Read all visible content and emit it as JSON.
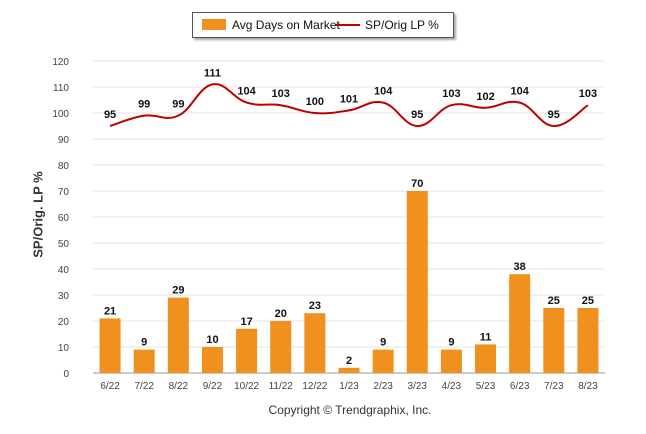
{
  "chart_data": {
    "type": "bar+line",
    "categories": [
      "6/22",
      "7/22",
      "8/22",
      "9/22",
      "10/22",
      "11/22",
      "12/22",
      "1/23",
      "2/23",
      "3/23",
      "4/23",
      "5/23",
      "6/23",
      "7/23",
      "8/23"
    ],
    "series": [
      {
        "name": "Avg Days on Market",
        "type": "bar",
        "color": "#F0901E",
        "values": [
          21,
          9,
          29,
          10,
          17,
          20,
          23,
          2,
          9,
          70,
          9,
          11,
          38,
          25,
          25
        ]
      },
      {
        "name": "SP/Orig LP %",
        "type": "line",
        "color": "#C00000",
        "values": [
          95,
          99,
          99,
          111,
          104,
          103,
          100,
          101,
          104,
          95,
          103,
          102,
          104,
          95,
          103
        ]
      }
    ],
    "ylabel": "SP/Orig. LP %",
    "ylim": [
      0,
      120
    ],
    "yticks": [
      0,
      10,
      20,
      30,
      40,
      50,
      60,
      70,
      80,
      90,
      100,
      110,
      120
    ],
    "grid": true,
    "legend_position": "top"
  },
  "footer": {
    "copyright": "Copyright © Trendgraphix, Inc."
  }
}
